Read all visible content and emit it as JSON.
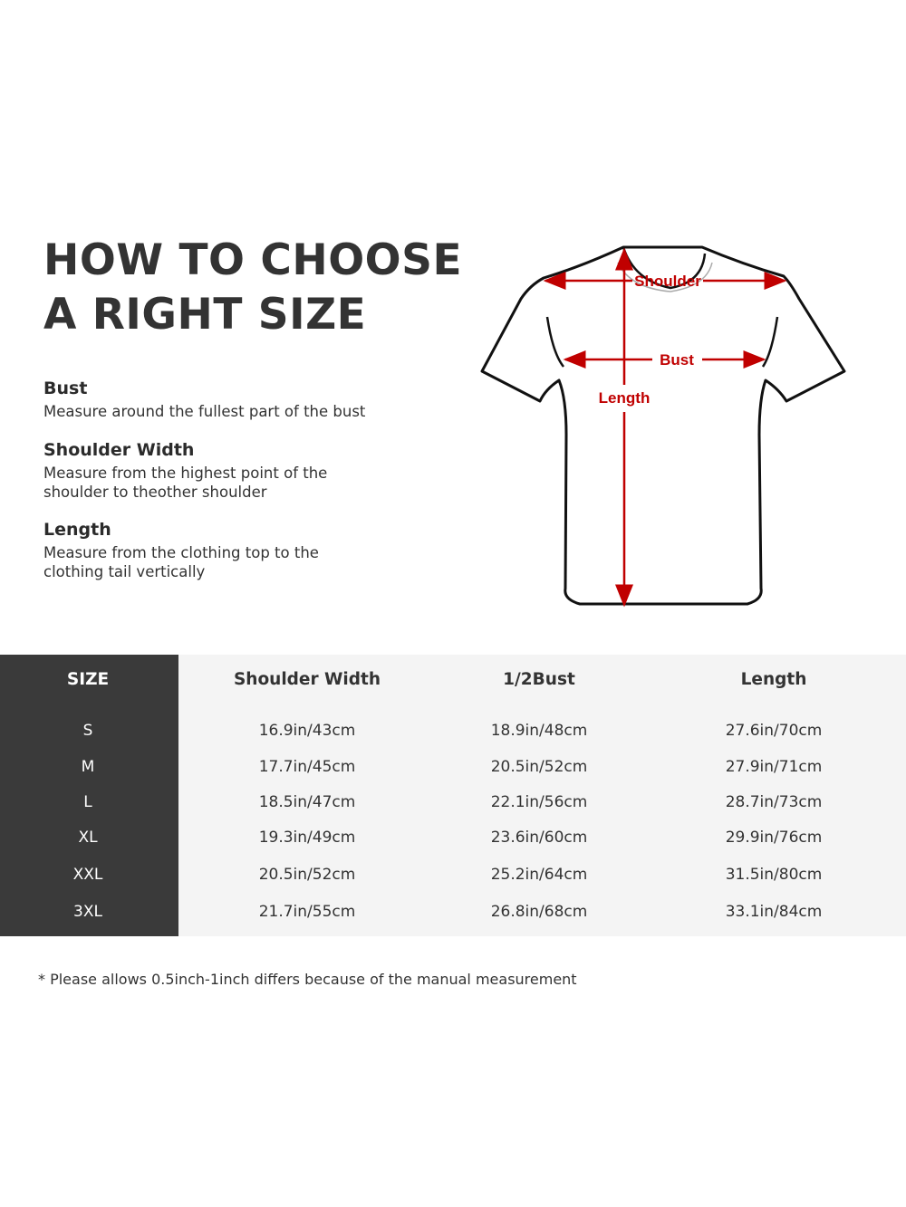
{
  "title_lines": [
    "HOW TO CHOOSE",
    "A RIGHT SIZE"
  ],
  "measures": [
    {
      "name": "Bust",
      "desc": "Measure around the fullest part of the bust"
    },
    {
      "name": "Shoulder Width",
      "desc": "Measure from the highest point of the shoulder to theother shoulder"
    },
    {
      "name": "Length",
      "desc": "Measure from the clothing top to the clothing tail vertically"
    }
  ],
  "diagram": {
    "shoulder_label": "Shoulder",
    "bust_label": "Bust",
    "length_label": "Length",
    "arrow_color": "#c00000"
  },
  "table": {
    "headers": [
      "SIZE",
      "Shoulder Width",
      "1/2Bust",
      "Length"
    ],
    "rows": [
      [
        "S",
        "16.9in/43cm",
        "18.9in/48cm",
        "27.6in/70cm"
      ],
      [
        "M",
        "17.7in/45cm",
        "20.5in/52cm",
        "27.9in/71cm"
      ],
      [
        "L",
        "18.5in/47cm",
        "22.1in/56cm",
        "28.7in/73cm"
      ],
      [
        "XL",
        "19.3in/49cm",
        "23.6in/60cm",
        "29.9in/76cm"
      ],
      [
        "XXL",
        "20.5in/52cm",
        "25.2in/64cm",
        "31.5in/80cm"
      ],
      [
        "3XL",
        "21.7in/55cm",
        "26.8in/68cm",
        "33.1in/84cm"
      ]
    ]
  },
  "note": "* Please allows 0.5inch-1inch differs because of the  manual measurement"
}
